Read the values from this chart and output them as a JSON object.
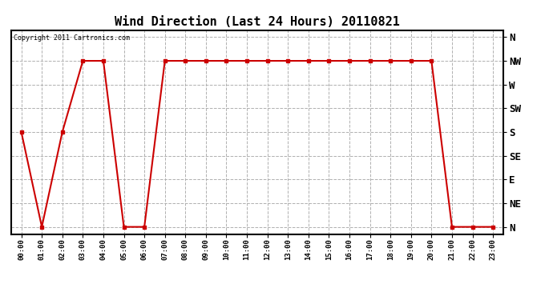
{
  "title": "Wind Direction (Last 24 Hours) 20110821",
  "copyright": "Copyright 2011 Cartronics.com",
  "line_color": "#cc0000",
  "bg_color": "#ffffff",
  "grid_color": "#b0b0b0",
  "x_labels": [
    "00:00",
    "01:00",
    "02:00",
    "03:00",
    "04:00",
    "05:00",
    "06:00",
    "07:00",
    "08:00",
    "09:00",
    "10:00",
    "11:00",
    "12:00",
    "13:00",
    "14:00",
    "15:00",
    "16:00",
    "17:00",
    "18:00",
    "19:00",
    "20:00",
    "21:00",
    "22:00",
    "23:00"
  ],
  "y_labels": [
    "N",
    "NE",
    "E",
    "SE",
    "S",
    "SW",
    "W",
    "NW",
    "N"
  ],
  "y_values": [
    0,
    1,
    2,
    3,
    4,
    5,
    6,
    7,
    8
  ],
  "data_x": [
    0,
    1,
    2,
    3,
    4,
    5,
    6,
    7,
    8,
    9,
    10,
    11,
    12,
    13,
    14,
    15,
    16,
    17,
    18,
    19,
    20,
    21,
    22,
    23
  ],
  "data_y": [
    4,
    0,
    4,
    7,
    7,
    0,
    0,
    7,
    7,
    7,
    7,
    7,
    7,
    7,
    7,
    7,
    7,
    7,
    7,
    7,
    7,
    0,
    0,
    0
  ],
  "marker_size": 3,
  "line_width": 1.5,
  "ylim": [
    -0.3,
    8.3
  ],
  "xlim": [
    -0.5,
    23.5
  ],
  "title_fontsize": 11,
  "ylabel_fontsize": 9,
  "xlabel_fontsize": 6.5,
  "copyright_fontsize": 6
}
